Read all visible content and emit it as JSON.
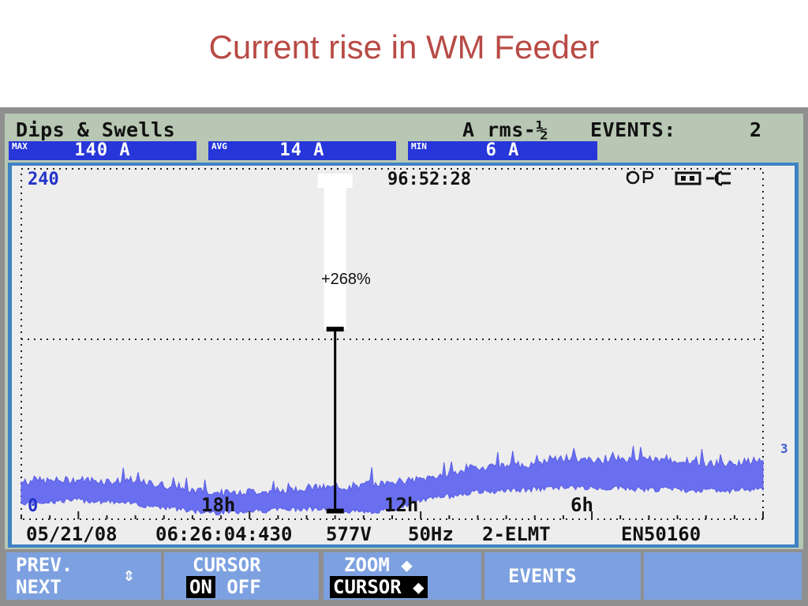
{
  "slide_title": "Current rise in WM Feeder",
  "header": {
    "mode": "Dips & Swells",
    "unit": "A rms-½",
    "events_label": "EVENTS:",
    "events_count": "2",
    "max_label": "MAX",
    "max_value": "140 A",
    "avg_label": "AVG",
    "avg_value": "14 A",
    "min_label": "MIN",
    "min_value": "6 A"
  },
  "status_icons": [
    "rotate-icon",
    "record-icon",
    "battery-icon",
    "plug-icon"
  ],
  "plot": {
    "cursor_time": "96:52:28",
    "event_annotation": "+268%",
    "right_marker": "3",
    "footer": {
      "date": "05/21/08",
      "time": "06:26:04:430",
      "voltage": "577V",
      "frequency": "50Hz",
      "config": "2-ELMT",
      "standard": "EN50160"
    }
  },
  "chart_data": {
    "type": "area",
    "title": "",
    "xlabel": "",
    "ylabel": "",
    "ylim": [
      0,
      240
    ],
    "y_tick_labels": [
      "240",
      "0"
    ],
    "x_tick_labels": [
      "18h",
      "12h",
      "6h"
    ],
    "x_time_hours_ago": [
      26,
      25,
      24,
      23,
      22,
      21,
      20,
      19,
      18,
      17,
      16,
      15,
      14,
      13,
      12,
      11,
      10,
      9,
      8,
      7,
      6,
      5,
      4,
      3,
      2,
      1,
      0
    ],
    "series": [
      {
        "band_min": [
          12,
          13,
          14,
          13,
          11,
          9,
          6,
          5,
          6,
          7,
          8,
          7,
          5,
          7,
          14,
          17,
          20,
          21,
          22,
          24,
          23,
          23,
          22,
          22,
          21,
          21,
          23
        ],
        "band_max": [
          26,
          27,
          28,
          27,
          26,
          24,
          20,
          18,
          19,
          20,
          22,
          22,
          24,
          26,
          28,
          33,
          37,
          38,
          40,
          44,
          42,
          43,
          43,
          42,
          40,
          40,
          43
        ]
      }
    ],
    "event_cursor": {
      "hours_ago": 15,
      "value_range": [
        6,
        140
      ]
    },
    "grid": true,
    "color": "#6a6ff0"
  },
  "softkeys": {
    "prev": "PREV.",
    "next": "NEXT",
    "updown": "⇕",
    "cursor": "CURSOR",
    "on": "ON",
    "off": "OFF",
    "zoom": "ZOOM ◆",
    "zoom_cursor": "CURSOR ◆",
    "events": "EVENTS"
  }
}
